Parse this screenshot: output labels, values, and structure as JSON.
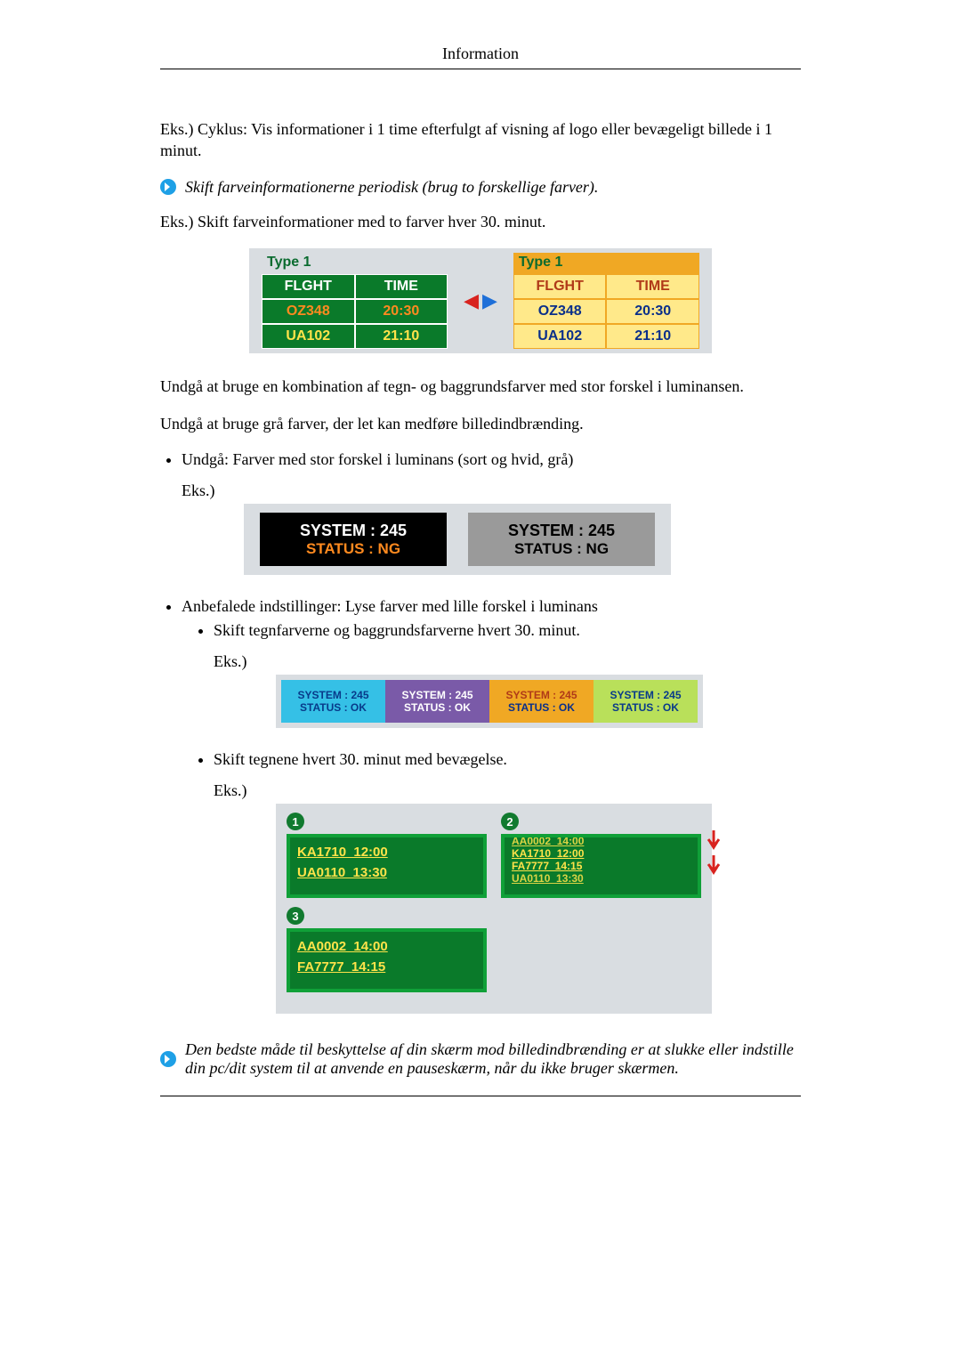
{
  "header": "Information",
  "p1": "Eks.) Cyklus: Vis informationer i 1 time efterfulgt af visning af logo eller bevægeligt billede i 1 minut.",
  "note1": "Skift farveinformationerne periodisk (brug to forskellige farver).",
  "p2": "Eks.) Skift farveinformationer med to farver hver 30. minut.",
  "fig1": {
    "title": "Type 1",
    "rows": [
      {
        "c1": "FLGHT",
        "c2": "TIME"
      },
      {
        "c1": "OZ348",
        "c2": "20:30"
      },
      {
        "c1": "UA102",
        "c2": "21:10"
      }
    ],
    "left": {
      "bg": "#0a7a2a",
      "row_colors": [
        "#ffffff",
        "#ff8a1f",
        "#ffe34a"
      ]
    },
    "right": {
      "bg": "#f0a824",
      "row_colors": [
        "#b03a18",
        "#0a2f8a",
        "#0a2f8a"
      ],
      "cell_bg": "#ffe98a"
    },
    "arrow_left_color": "#d8231f",
    "arrow_right_color": "#1e6fd8"
  },
  "p3": "Undgå at bruge en kombination af tegn- og baggrundsfarver med stor forskel i luminansen.",
  "p4": "Undgå at bruge grå farver, der let kan medføre billedindbrænding.",
  "bullet1": "Undgå: Farver med stor forskel i luminans (sort og hvid, grå)",
  "eks": "Eks.)",
  "fig2": {
    "line1": "SYSTEM : 245",
    "line2": "STATUS : NG",
    "boxes": [
      {
        "bg": "#000000",
        "c1": "#ffffff",
        "c2": "#ff8a1f"
      },
      {
        "bg": "#9a9a9a",
        "c1": "#000000",
        "c2": "#000000"
      }
    ]
  },
  "bullet2": "Anbefalede indstillinger: Lyse farver med lille forskel i luminans",
  "sub1": "Skift tegnfarverne og baggrundsfarverne hvert 30. minut.",
  "fig3": {
    "line1": "SYSTEM : 245",
    "line2": "STATUS : OK",
    "boxes": [
      {
        "bg": "#35c0e6",
        "c1": "#083a8a",
        "c2": "#083a8a"
      },
      {
        "bg": "#7a5aa8",
        "c1": "#ffffff",
        "c2": "#ffffff"
      },
      {
        "bg": "#f0a824",
        "c1": "#b03a18",
        "c2": "#0a2f8a"
      },
      {
        "bg": "#b9e05a",
        "c1": "#083a8a",
        "c2": "#083a8a"
      }
    ]
  },
  "sub2": "Skift tegnene hvert 30. minut med bevægelse.",
  "fig4": {
    "panels": [
      {
        "n": "1",
        "lines": [
          "KA1710  12:00",
          "UA0110  13:30"
        ]
      },
      {
        "n": "2",
        "scroll": true,
        "lines": [
          "AA0002  14:00",
          "KA1710  12:00",
          "FA7777  14:15",
          "UA0110  13:30"
        ]
      },
      {
        "n": "3",
        "lines": [
          "AA0002  14:00",
          "FA7777  14:15"
        ]
      }
    ],
    "arrow_color": "#d8231f"
  },
  "note2": "Den bedste måde til beskyttelse af din skærm mod billedindbrænding er at slukke eller indstille din pc/dit system til at anvende en pauseskærm, når du ikke bruger skærmen."
}
